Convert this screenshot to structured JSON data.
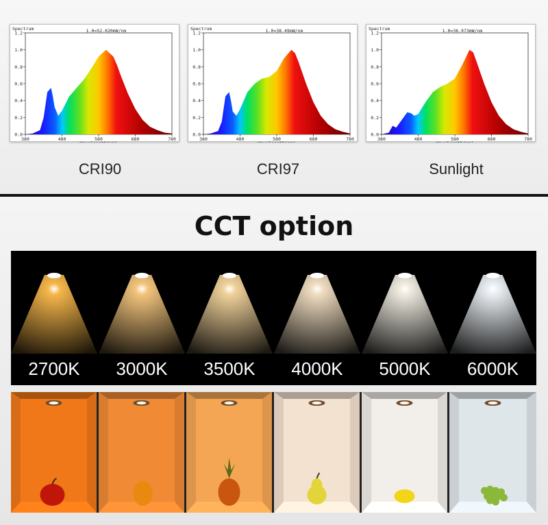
{
  "section_spectrum": {
    "captions": [
      "CRI90",
      "CRI97",
      "Sunlight"
    ]
  },
  "section_cct": {
    "title": "CCT option",
    "temperatures": [
      {
        "label": "2700K",
        "color": "#f5b64a"
      },
      {
        "label": "3000K",
        "color": "#f2c47c"
      },
      {
        "label": "3500K",
        "color": "#f0d19a"
      },
      {
        "label": "4000K",
        "color": "#efdcc0"
      },
      {
        "label": "5000K",
        "color": "#eeeadf"
      },
      {
        "label": "6000K",
        "color": "#e9eef2"
      }
    ],
    "room_colors": [
      "#f07818",
      "#f08a34",
      "#f5a654",
      "#f4e2d0",
      "#f2efea",
      "#dfe6ea"
    ],
    "room_objects": [
      "apple",
      "orange",
      "pineapple",
      "pear",
      "lemon",
      "grapes"
    ]
  },
  "chart_data": [
    {
      "type": "area",
      "title": "Spectrum",
      "annotation": "1.0=52.020mW/nm",
      "xlabel": "Wavelength(nm)",
      "ylabel": "",
      "xlim": [
        380,
        780
      ],
      "ylim": [
        0,
        1.2
      ],
      "x_ticks": [
        "380",
        "480",
        "580",
        "680",
        "780"
      ],
      "y_ticks": [
        "0.0",
        "0.2",
        "0.4",
        "0.6",
        "0.8",
        "1.0",
        "1.2"
      ],
      "caption": "CRI90",
      "x": [
        380,
        400,
        420,
        430,
        440,
        450,
        455,
        460,
        470,
        480,
        500,
        520,
        540,
        560,
        580,
        600,
        620,
        630,
        640,
        660,
        680,
        700,
        720,
        740,
        760,
        780
      ],
      "y": [
        0,
        0.01,
        0.05,
        0.2,
        0.5,
        0.55,
        0.45,
        0.32,
        0.22,
        0.28,
        0.45,
        0.55,
        0.65,
        0.78,
        0.92,
        1.0,
        0.92,
        0.82,
        0.7,
        0.48,
        0.3,
        0.17,
        0.09,
        0.05,
        0.02,
        0.01
      ]
    },
    {
      "type": "area",
      "title": "Spectrum",
      "annotation": "1.0=38.49mW/nm",
      "xlabel": "Wavelength(nm)",
      "ylabel": "",
      "xlim": [
        380,
        780
      ],
      "ylim": [
        0,
        1.2
      ],
      "x_ticks": [
        "380",
        "480",
        "580",
        "680",
        "780"
      ],
      "y_ticks": [
        "0.0",
        "0.2",
        "0.4",
        "0.6",
        "0.8",
        "1.0",
        "1.2"
      ],
      "caption": "CRI97",
      "x": [
        380,
        400,
        420,
        430,
        440,
        450,
        455,
        460,
        470,
        480,
        500,
        520,
        540,
        560,
        580,
        600,
        620,
        630,
        640,
        660,
        680,
        700,
        720,
        740,
        760,
        780
      ],
      "y": [
        0,
        0.01,
        0.04,
        0.15,
        0.45,
        0.5,
        0.4,
        0.27,
        0.22,
        0.3,
        0.5,
        0.6,
        0.66,
        0.68,
        0.75,
        0.9,
        1.0,
        0.96,
        0.85,
        0.6,
        0.38,
        0.22,
        0.12,
        0.06,
        0.03,
        0.01
      ]
    },
    {
      "type": "area",
      "title": "Spectrum",
      "annotation": "1.0=36.973mW/nm",
      "xlabel": "Wavelength(nm)",
      "ylabel": "",
      "xlim": [
        380,
        780
      ],
      "ylim": [
        0,
        1.2
      ],
      "x_ticks": [
        "380",
        "480",
        "580",
        "680",
        "780"
      ],
      "y_ticks": [
        "0.0",
        "0.2",
        "0.4",
        "0.6",
        "0.8",
        "1.0",
        "1.2"
      ],
      "caption": "Sunlight",
      "x": [
        380,
        400,
        410,
        420,
        430,
        440,
        450,
        460,
        470,
        480,
        500,
        520,
        540,
        560,
        580,
        600,
        620,
        630,
        640,
        660,
        680,
        700,
        720,
        740,
        760,
        780
      ],
      "y": [
        0,
        0.02,
        0.1,
        0.08,
        0.14,
        0.2,
        0.26,
        0.25,
        0.22,
        0.24,
        0.38,
        0.5,
        0.56,
        0.6,
        0.66,
        0.82,
        1.0,
        0.97,
        0.85,
        0.6,
        0.38,
        0.22,
        0.12,
        0.06,
        0.03,
        0.01
      ]
    }
  ]
}
